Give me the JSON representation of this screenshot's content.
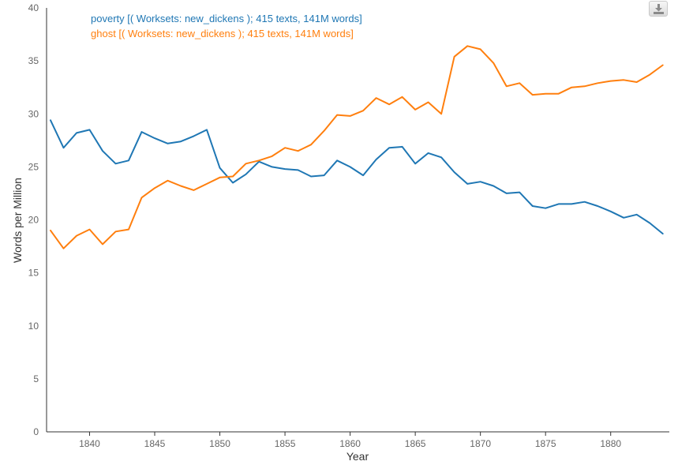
{
  "download_icon": "download-icon",
  "chart_data": {
    "type": "line",
    "xlabel": "Year",
    "ylabel": "Words per Million",
    "xlim": [
      1836.7,
      1884.5
    ],
    "ylim": [
      0,
      40
    ],
    "x_ticks": [
      1840,
      1845,
      1850,
      1855,
      1860,
      1865,
      1870,
      1875,
      1880
    ],
    "y_ticks": [
      0,
      5,
      10,
      15,
      20,
      25,
      30,
      35,
      40
    ],
    "legend_position": "top-left",
    "x": [
      1837,
      1838,
      1839,
      1840,
      1841,
      1842,
      1843,
      1844,
      1845,
      1846,
      1847,
      1848,
      1849,
      1850,
      1851,
      1852,
      1853,
      1854,
      1855,
      1856,
      1857,
      1858,
      1859,
      1860,
      1861,
      1862,
      1863,
      1864,
      1865,
      1866,
      1867,
      1868,
      1869,
      1870,
      1871,
      1872,
      1873,
      1874,
      1875,
      1876,
      1877,
      1878,
      1879,
      1880,
      1881,
      1882,
      1883,
      1884
    ],
    "series": [
      {
        "name": "poverty [( Worksets: new_dickens ); 415 texts, 141M words]",
        "color": "#1f77b4",
        "values": [
          29.4,
          26.8,
          28.2,
          28.5,
          26.5,
          25.3,
          25.6,
          28.3,
          27.7,
          27.2,
          27.4,
          27.9,
          28.5,
          24.9,
          23.5,
          24.3,
          25.5,
          25.0,
          24.8,
          24.7,
          24.1,
          24.2,
          25.6,
          25.0,
          24.2,
          25.7,
          26.8,
          26.9,
          25.3,
          26.3,
          25.9,
          24.5,
          23.4,
          23.6,
          23.2,
          22.5,
          22.6,
          21.3,
          21.1,
          21.5,
          21.5,
          21.7,
          21.3,
          20.8,
          20.2,
          20.5,
          19.7,
          18.7
        ]
      },
      {
        "name": "ghost [( Worksets: new_dickens ); 415 texts, 141M words]",
        "color": "#ff7f0e",
        "values": [
          19.0,
          17.3,
          18.5,
          19.1,
          17.7,
          18.9,
          19.1,
          22.1,
          23.0,
          23.7,
          23.2,
          22.8,
          23.4,
          24.0,
          24.1,
          25.3,
          25.6,
          26.0,
          26.8,
          26.5,
          27.1,
          28.4,
          29.9,
          29.8,
          30.3,
          31.5,
          30.9,
          31.6,
          30.4,
          31.1,
          30.0,
          35.4,
          36.4,
          36.1,
          34.8,
          32.6,
          32.9,
          31.8,
          31.9,
          31.9,
          32.5,
          32.6,
          32.9,
          33.1,
          33.2,
          33.0,
          33.7,
          34.6
        ]
      }
    ]
  }
}
